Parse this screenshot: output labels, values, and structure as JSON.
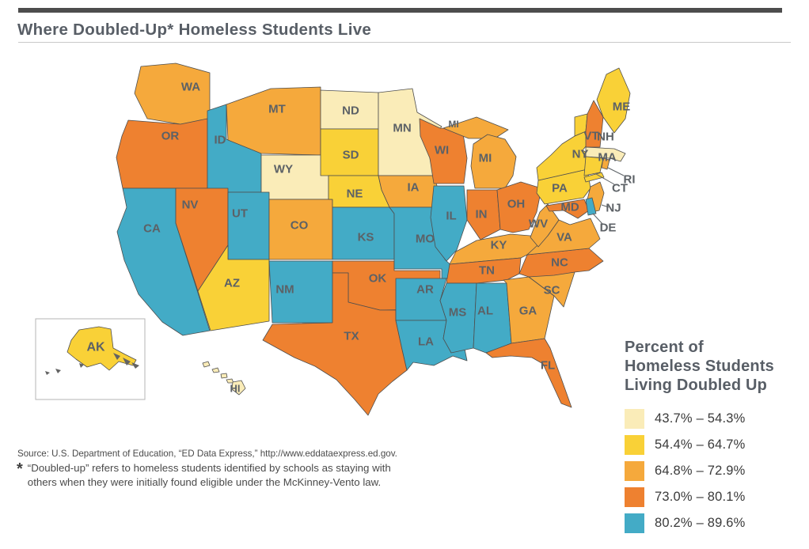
{
  "page": {
    "title": "Where Doubled-Up* Homeless Students Live"
  },
  "legend": {
    "title_lines": [
      "Percent of",
      "Homeless Students",
      "Living Doubled Up"
    ]
  },
  "chart_data": {
    "type": "choropleth_map",
    "title": "Where Doubled-Up* Homeless Students Live",
    "measure": "Percent of Homeless Students Living Doubled Up",
    "legend_position": "right",
    "bins": [
      {
        "range": "43.7% – 54.3%",
        "color": "#FAECB8",
        "states": [
          "ND",
          "MN",
          "WY",
          "MA",
          "HI"
        ]
      },
      {
        "range": "54.4% – 64.7%",
        "color": "#F9D137",
        "states": [
          "AK",
          "AZ",
          "SD",
          "NE",
          "ME",
          "VT",
          "NY",
          "PA",
          "CT"
        ]
      },
      {
        "range": "64.8% – 72.9%",
        "color": "#F5A93C",
        "states": [
          "WA",
          "MT",
          "CO",
          "IA",
          "MI",
          "KY",
          "WV",
          "VA",
          "GA",
          "SC",
          "NJ",
          "RI"
        ]
      },
      {
        "range": "73.0% – 80.1%",
        "color": "#EE8130",
        "states": [
          "OR",
          "NV",
          "WI",
          "IN",
          "OH",
          "OK",
          "TX",
          "TN",
          "NC",
          "FL",
          "NH",
          "MD"
        ]
      },
      {
        "range": "80.2% – 89.6%",
        "color": "#43ABC6",
        "states": [
          "CA",
          "ID",
          "UT",
          "NM",
          "KS",
          "MO",
          "IL",
          "AR",
          "LA",
          "MS",
          "AL",
          "DE"
        ]
      }
    ]
  },
  "source": "Source: U.S. Department of Education, “ED Data Express,” http://www.eddataexpress.ed.gov.",
  "footnote": {
    "marker": "*",
    "text": "“Doubled-up” refers to homeless students identified by schools as staying with others when they were initially found eligible under the McKinney-Vento law."
  }
}
